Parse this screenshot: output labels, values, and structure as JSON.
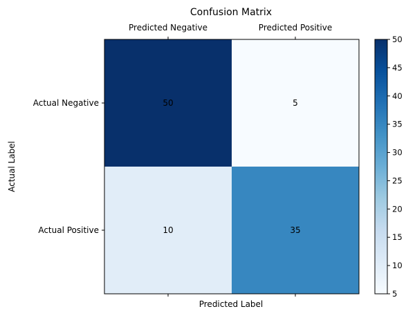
{
  "chart_data": {
    "type": "heatmap",
    "title": "Confusion Matrix",
    "xlabel": "Predicted Label",
    "ylabel": "Actual Label",
    "x_categories": [
      "Predicted Negative",
      "Predicted Positive"
    ],
    "y_categories": [
      "Actual Negative",
      "Actual Positive"
    ],
    "values": [
      [
        50,
        5
      ],
      [
        10,
        35
      ]
    ],
    "colormap": "Blues",
    "color_range": [
      5,
      50
    ],
    "colorbar_ticks": [
      5,
      10,
      15,
      20,
      25,
      30,
      35,
      40,
      45,
      50
    ],
    "x_tick_position": "top",
    "grid": false
  }
}
